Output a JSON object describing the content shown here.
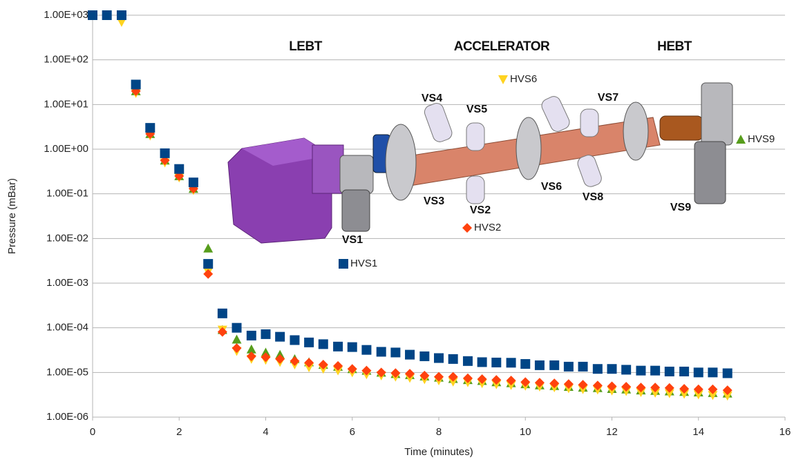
{
  "chart_data": {
    "type": "scatter",
    "x_label": "Time (minutes)",
    "y_label": "Pressure (mBar)",
    "xlim": [
      0,
      16
    ],
    "xticks": [
      0,
      2,
      4,
      6,
      8,
      10,
      12,
      14,
      16
    ],
    "ylim": [
      1e-06,
      1000
    ],
    "log_y": true,
    "grid": true,
    "yticks": [
      {
        "value": 1e-06,
        "label": "1.00E-06"
      },
      {
        "value": 1e-05,
        "label": "1.00E-05"
      },
      {
        "value": 0.0001,
        "label": "1.00E-04"
      },
      {
        "value": 0.001,
        "label": "1.00E-03"
      },
      {
        "value": 0.01,
        "label": "1.00E-02"
      },
      {
        "value": 0.1,
        "label": "1.00E-01"
      },
      {
        "value": 1,
        "label": "1.00E+00"
      },
      {
        "value": 10,
        "label": "1.00E+01"
      },
      {
        "value": 100,
        "label": "1.00E+02"
      },
      {
        "value": 1000,
        "label": "1.00E+03"
      }
    ],
    "x": [
      0,
      0.33,
      0.67,
      1,
      1.33,
      1.67,
      2,
      2.33,
      2.67,
      3,
      3.33,
      3.67,
      4,
      4.33,
      4.67,
      5,
      5.33,
      5.67,
      6,
      6.33,
      6.67,
      7,
      7.33,
      7.67,
      8,
      8.33,
      8.67,
      9,
      9.33,
      9.67,
      10,
      10.33,
      10.67,
      11,
      11.33,
      11.67,
      12,
      12.33,
      12.67,
      13,
      13.33,
      13.67,
      14,
      14.33,
      14.67
    ],
    "series": [
      {
        "name": "HVS1",
        "color": "#004586",
        "marker": "square",
        "values": [
          1000,
          1000,
          1000,
          28,
          3.0,
          0.81,
          0.36,
          0.18,
          0.0027,
          0.00021,
          0.0001,
          6.7e-05,
          7.2e-05,
          6.3e-05,
          5.3e-05,
          4.7e-05,
          4.3e-05,
          3.8e-05,
          3.7e-05,
          3.2e-05,
          2.9e-05,
          2.8e-05,
          2.5e-05,
          2.3e-05,
          2.1e-05,
          2e-05,
          1.8e-05,
          1.7e-05,
          1.67e-05,
          1.65e-05,
          1.55e-05,
          1.45e-05,
          1.45e-05,
          1.35e-05,
          1.35e-05,
          1.2e-05,
          1.2e-05,
          1.15e-05,
          1.1e-05,
          1.1e-05,
          1.05e-05,
          1.05e-05,
          1e-05,
          1e-05,
          9.6e-06
        ]
      },
      {
        "name": "HVS2",
        "color": "#ff420e",
        "marker": "diamond",
        "values": [
          1000,
          1000,
          1000,
          20,
          2.2,
          0.56,
          0.25,
          0.13,
          0.0016,
          8.1e-05,
          3.5e-05,
          2.3e-05,
          2.2e-05,
          2e-05,
          1.8e-05,
          1.65e-05,
          1.5e-05,
          1.4e-05,
          1.2e-05,
          1.1e-05,
          1e-05,
          9.7e-06,
          9.4e-06,
          8.5e-06,
          8e-06,
          8e-06,
          7.4e-06,
          7.1e-06,
          6.8e-06,
          6.6e-06,
          6.1e-06,
          5.9e-06,
          5.7e-06,
          5.5e-06,
          5.3e-06,
          5.1e-06,
          4.9e-06,
          4.8e-06,
          4.6e-06,
          4.6e-06,
          4.5e-06,
          4.3e-06,
          4.2e-06,
          4.2e-06,
          4e-06
        ]
      },
      {
        "name": "HVS6",
        "color": "#ffd320",
        "marker": "triangle-down",
        "values": [
          1000,
          1000,
          700,
          18,
          2.0,
          0.5,
          0.23,
          0.12,
          0.0018,
          9e-05,
          3e-05,
          2e-05,
          1.9e-05,
          1.7e-05,
          1.5e-05,
          1.3e-05,
          1.2e-05,
          1.1e-05,
          1e-05,
          9e-06,
          8.5e-06,
          8e-06,
          7.5e-06,
          7e-06,
          6.6e-06,
          6.2e-06,
          6e-06,
          5.7e-06,
          5.4e-06,
          5.2e-06,
          5e-06,
          4.8e-06,
          4.6e-06,
          4.4e-06,
          4.2e-06,
          4.1e-06,
          3.9e-06,
          3.8e-06,
          3.6e-06,
          3.5e-06,
          3.4e-06,
          3.3e-06,
          3.2e-06,
          3.1e-06,
          3e-06
        ]
      },
      {
        "name": "HVS9",
        "color": "#579d1c",
        "marker": "triangle-up",
        "values": [
          1000,
          1000,
          1000,
          20,
          2.2,
          0.56,
          0.25,
          0.13,
          0.006,
          9e-05,
          5.5e-05,
          3.3e-05,
          2.8e-05,
          2.5e-05,
          2e-05,
          1.7e-05,
          1.5e-05,
          1.35e-05,
          1.2e-05,
          1.1e-05,
          1e-05,
          9.3e-06,
          8.8e-06,
          8.2e-06,
          7.7e-06,
          7.2e-06,
          6.8e-06,
          6.5e-06,
          6.1e-06,
          5.8e-06,
          5.5e-06,
          5.2e-06,
          5e-06,
          4.8e-06,
          4.6e-06,
          4.5e-06,
          4.3e-06,
          4.2e-06,
          4e-06,
          3.9e-06,
          3.8e-06,
          3.7e-06,
          3.6e-06,
          3.5e-06,
          3.4e-06
        ]
      }
    ],
    "annotations": [
      "LEBT",
      "ACCELERATOR",
      "HEBT",
      "VS1",
      "VS2",
      "VS3",
      "VS4",
      "VS5",
      "VS6",
      "VS7",
      "VS8",
      "VS9"
    ]
  }
}
